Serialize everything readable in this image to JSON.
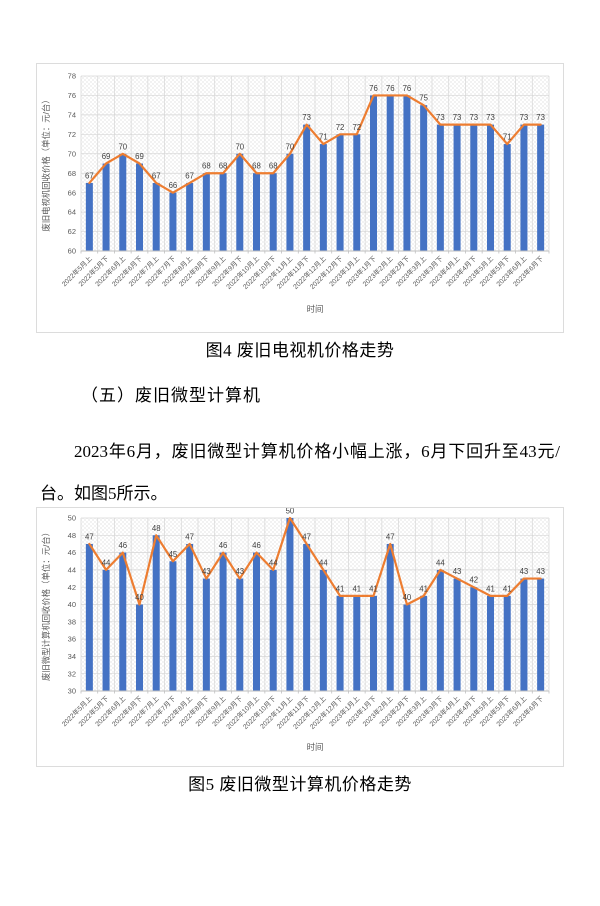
{
  "document": {
    "figure4_caption": "图4 废旧电视机价格走势",
    "section_heading": "（五）废旧微型计算机",
    "paragraph": "2023年6月，废旧微型计算机价格小幅上涨，6月下回升至43元/台。如图5所示。",
    "figure5_caption": "图5 废旧微型计算机价格走势"
  },
  "colors": {
    "bar": "#4472C4",
    "line": "#ED7D31",
    "grid": "#D6D6D6",
    "hatch": "#E6E6E6",
    "axis": "#BFBFBF",
    "tick_text": "#595959",
    "data_label_text": "#404040",
    "page_bg": "#FFFFFF"
  },
  "chart_data": [
    {
      "type": "bar",
      "combo": [
        "column",
        "line"
      ],
      "title": "",
      "xlabel": "时间",
      "ylabel": "废旧电视机回收价格（单位：元/台）",
      "ylim": [
        60,
        78
      ],
      "ytick_step": 2,
      "grid": true,
      "legend": "none",
      "data_labels": true,
      "categories": [
        "2022年5月上",
        "2022年5月下",
        "2022年6月上",
        "2022年6月下",
        "2022年7月上",
        "2022年7月下",
        "2022年8月上",
        "2022年8月下",
        "2022年9月上",
        "2022年9月下",
        "2022年10月上",
        "2022年10月下",
        "2022年11月上",
        "2022年11月下",
        "2022年12月上",
        "2022年12月下",
        "2023年1月上",
        "2023年1月下",
        "2023年2月上",
        "2023年2月下",
        "2023年3月上",
        "2023年3月下",
        "2023年4月上",
        "2023年4月下",
        "2023年5月上",
        "2023年5月下",
        "2023年6月上",
        "2023年6月下"
      ],
      "values": [
        67,
        69,
        70,
        69,
        67,
        66,
        67,
        68,
        68,
        70,
        68,
        68,
        70,
        73,
        71,
        72,
        72,
        76,
        76,
        76,
        75,
        73,
        73,
        73,
        73,
        71,
        73,
        73
      ]
    },
    {
      "type": "bar",
      "combo": [
        "column",
        "line"
      ],
      "title": "",
      "xlabel": "时间",
      "ylabel": "废旧微型计算机回收价格（单位：元/台）",
      "ylim": [
        30,
        50
      ],
      "ytick_step": 2,
      "grid": true,
      "legend": "none",
      "data_labels": true,
      "categories": [
        "2022年5月上",
        "2022年5月下",
        "2022年6月上",
        "2022年6月下",
        "2022年7月上",
        "2022年7月下",
        "2022年8月上",
        "2022年8月下",
        "2022年9月上",
        "2022年9月下",
        "2022年10月上",
        "2022年10月下",
        "2022年11月上",
        "2022年11月下",
        "2022年12月上",
        "2022年12月下",
        "2023年1月上",
        "2023年1月下",
        "2023年2月上",
        "2023年2月下",
        "2023年3月上",
        "2023年3月下",
        "2023年4月上",
        "2023年4月下",
        "2023年5月上",
        "2023年5月下",
        "2023年6月上",
        "2023年6月下"
      ],
      "values": [
        47,
        44,
        46,
        40,
        48,
        45,
        47,
        43,
        46,
        43,
        46,
        44,
        50,
        47,
        44,
        41,
        41,
        41,
        47,
        40,
        41,
        44,
        43,
        42,
        41,
        41,
        43,
        43
      ]
    }
  ]
}
